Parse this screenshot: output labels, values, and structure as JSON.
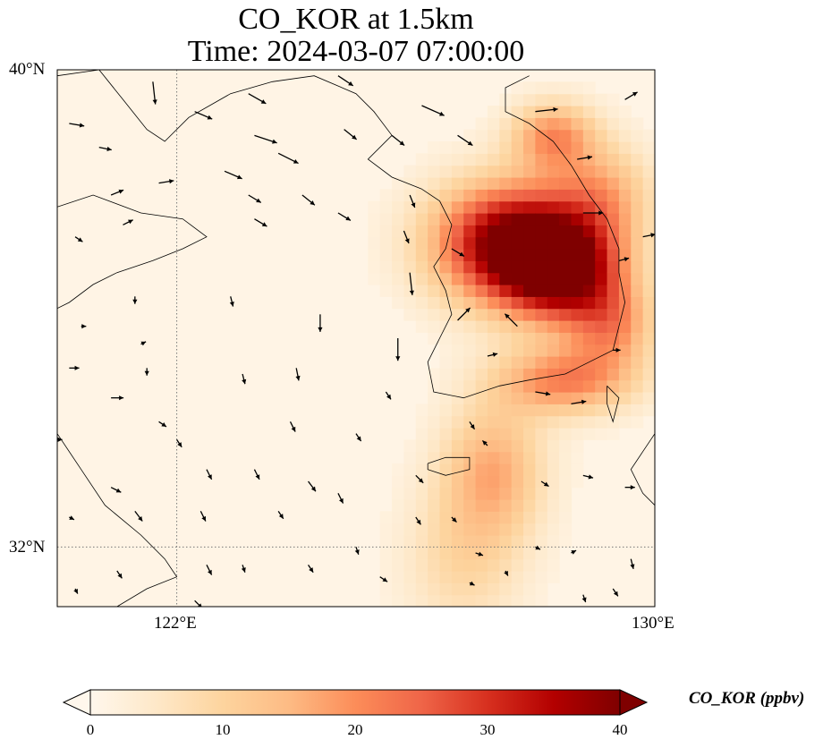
{
  "title": {
    "line1": "CO_KOR at 1.5km",
    "line2": "Time: 2024-03-07 07:00:00"
  },
  "axes": {
    "lat_ticks": [
      "40°N",
      "32°N"
    ],
    "lon_ticks": [
      "122°E",
      "130°E"
    ],
    "extent": {
      "lon_min": 120,
      "lon_max": 130,
      "lat_min": 31,
      "lat_max": 40
    },
    "gridlines": {
      "lons": [
        122
      ],
      "lats": [
        32
      ],
      "style": "dotted"
    }
  },
  "colorbar": {
    "label": "CO_KOR (ppbv)",
    "ticks": [
      "0",
      "10",
      "20",
      "30",
      "40"
    ],
    "min": 0,
    "max": 40,
    "extend": "both",
    "cmap": "OrRd",
    "colors": [
      "#fff7ec",
      "#fee8c8",
      "#fdd49e",
      "#fdbb84",
      "#fc8d59",
      "#ef6548",
      "#d7301f",
      "#b30000",
      "#7f0000"
    ]
  },
  "field": {
    "background_value": 1,
    "plumes": [
      {
        "name": "core",
        "lon": 127.6,
        "lat": 37.1,
        "peak": 40,
        "sigma_lon": 0.9,
        "sigma_lat": 0.7
      },
      {
        "name": "core-east",
        "lon": 128.5,
        "lat": 36.6,
        "peak": 32,
        "sigma_lon": 0.7,
        "sigma_lat": 0.6
      },
      {
        "name": "north",
        "lon": 128.3,
        "lat": 38.9,
        "peak": 18,
        "sigma_lon": 0.5,
        "sigma_lat": 0.4
      },
      {
        "name": "northeast",
        "lon": 129.1,
        "lat": 37.9,
        "peak": 14,
        "sigma_lon": 0.6,
        "sigma_lat": 0.6
      },
      {
        "name": "south",
        "lon": 128.5,
        "lat": 34.8,
        "peak": 20,
        "sigma_lon": 0.8,
        "sigma_lat": 0.4
      },
      {
        "name": "southeast",
        "lon": 129.3,
        "lat": 35.7,
        "peak": 16,
        "sigma_lon": 0.5,
        "sigma_lat": 0.5
      },
      {
        "name": "jeju",
        "lon": 127.3,
        "lat": 33.3,
        "peak": 15,
        "sigma_lon": 0.6,
        "sigma_lat": 0.8
      },
      {
        "name": "tail",
        "lon": 126.8,
        "lat": 31.8,
        "peak": 8,
        "sigma_lon": 0.7,
        "sigma_lat": 0.9
      }
    ]
  },
  "wind_vectors": [
    {
      "lon": 120.2,
      "lat": 39.1,
      "u": 0.6,
      "v": -0.1
    },
    {
      "lon": 120.7,
      "lat": 38.7,
      "u": 0.5,
      "v": -0.1
    },
    {
      "lon": 121.6,
      "lat": 39.8,
      "u": 0.1,
      "v": -0.9
    },
    {
      "lon": 122.3,
      "lat": 39.3,
      "u": 0.7,
      "v": -0.3
    },
    {
      "lon": 123.2,
      "lat": 39.6,
      "u": 0.7,
      "v": -0.4
    },
    {
      "lon": 124.7,
      "lat": 39.9,
      "u": 0.6,
      "v": -0.4
    },
    {
      "lon": 126.1,
      "lat": 39.4,
      "u": 0.9,
      "v": -0.4
    },
    {
      "lon": 128.0,
      "lat": 39.3,
      "u": 0.9,
      "v": 0.1
    },
    {
      "lon": 129.5,
      "lat": 39.5,
      "u": 0.5,
      "v": 0.3
    },
    {
      "lon": 123.3,
      "lat": 38.9,
      "u": 0.9,
      "v": -0.3
    },
    {
      "lon": 123.7,
      "lat": 38.6,
      "u": 0.8,
      "v": -0.4
    },
    {
      "lon": 124.8,
      "lat": 39.0,
      "u": 0.5,
      "v": -0.4
    },
    {
      "lon": 125.6,
      "lat": 38.9,
      "u": 0.5,
      "v": -0.4
    },
    {
      "lon": 126.7,
      "lat": 38.9,
      "u": 0.6,
      "v": -0.4
    },
    {
      "lon": 128.7,
      "lat": 38.5,
      "u": 0.6,
      "v": 0.1
    },
    {
      "lon": 122.8,
      "lat": 38.3,
      "u": 0.7,
      "v": -0.3
    },
    {
      "lon": 121.7,
      "lat": 38.1,
      "u": 0.6,
      "v": 0.1
    },
    {
      "lon": 120.9,
      "lat": 37.9,
      "u": 0.5,
      "v": 0.2
    },
    {
      "lon": 123.2,
      "lat": 37.9,
      "u": 0.5,
      "v": -0.3
    },
    {
      "lon": 124.1,
      "lat": 37.9,
      "u": 0.5,
      "v": -0.4
    },
    {
      "lon": 125.9,
      "lat": 37.9,
      "u": 0.2,
      "v": -0.5
    },
    {
      "lon": 124.7,
      "lat": 37.6,
      "u": 0.5,
      "v": -0.3
    },
    {
      "lon": 120.3,
      "lat": 37.2,
      "u": 0.3,
      "v": -0.2
    },
    {
      "lon": 121.1,
      "lat": 37.4,
      "u": 0.4,
      "v": 0.2
    },
    {
      "lon": 123.3,
      "lat": 37.5,
      "u": 0.5,
      "v": -0.3
    },
    {
      "lon": 125.8,
      "lat": 37.3,
      "u": 0.2,
      "v": -0.5
    },
    {
      "lon": 128.8,
      "lat": 37.6,
      "u": 0.8,
      "v": 0.0
    },
    {
      "lon": 129.8,
      "lat": 37.2,
      "u": 0.5,
      "v": 0.1
    },
    {
      "lon": 126.6,
      "lat": 37.0,
      "u": 0.5,
      "v": -0.3
    },
    {
      "lon": 129.4,
      "lat": 36.8,
      "u": 0.4,
      "v": 0.1
    },
    {
      "lon": 125.9,
      "lat": 36.6,
      "u": 0.1,
      "v": -0.9
    },
    {
      "lon": 121.3,
      "lat": 36.2,
      "u": 0.0,
      "v": -0.3
    },
    {
      "lon": 122.9,
      "lat": 36.2,
      "u": 0.1,
      "v": -0.4
    },
    {
      "lon": 124.4,
      "lat": 35.9,
      "u": 0.0,
      "v": -0.7
    },
    {
      "lon": 126.7,
      "lat": 35.8,
      "u": 0.5,
      "v": 0.5
    },
    {
      "lon": 127.7,
      "lat": 35.7,
      "u": -0.5,
      "v": 0.5
    },
    {
      "lon": 120.4,
      "lat": 35.7,
      "u": 0.2,
      "v": 0.0
    },
    {
      "lon": 121.4,
      "lat": 35.4,
      "u": 0.2,
      "v": 0.1
    },
    {
      "lon": 125.7,
      "lat": 35.5,
      "u": 0.0,
      "v": -0.9
    },
    {
      "lon": 127.2,
      "lat": 35.2,
      "u": 0.4,
      "v": 0.1
    },
    {
      "lon": 129.3,
      "lat": 35.3,
      "u": 0.3,
      "v": 0.0
    },
    {
      "lon": 130.0,
      "lat": 35.4,
      "u": 0.3,
      "v": 0.0
    },
    {
      "lon": 120.2,
      "lat": 35.0,
      "u": 0.4,
      "v": 0.0
    },
    {
      "lon": 121.5,
      "lat": 35.0,
      "u": 0.0,
      "v": -0.3
    },
    {
      "lon": 123.1,
      "lat": 34.9,
      "u": 0.1,
      "v": -0.4
    },
    {
      "lon": 124.0,
      "lat": 35.0,
      "u": 0.1,
      "v": -0.5
    },
    {
      "lon": 123.9,
      "lat": 34.1,
      "u": 0.2,
      "v": -0.4
    },
    {
      "lon": 125.5,
      "lat": 34.6,
      "u": 0.2,
      "v": -0.3
    },
    {
      "lon": 120.9,
      "lat": 34.5,
      "u": 0.5,
      "v": 0.0
    },
    {
      "lon": 121.7,
      "lat": 34.1,
      "u": 0.3,
      "v": -0.2
    },
    {
      "lon": 125.0,
      "lat": 33.9,
      "u": 0.2,
      "v": -0.3
    },
    {
      "lon": 126.9,
      "lat": 34.1,
      "u": 0.2,
      "v": -0.3
    },
    {
      "lon": 128.0,
      "lat": 34.6,
      "u": 0.6,
      "v": -0.1
    },
    {
      "lon": 128.6,
      "lat": 34.4,
      "u": 0.6,
      "v": 0.1
    },
    {
      "lon": 127.2,
      "lat": 33.7,
      "u": -0.2,
      "v": 0.2
    },
    {
      "lon": 126.0,
      "lat": 33.2,
      "u": 0.3,
      "v": -0.3
    },
    {
      "lon": 120.0,
      "lat": 33.8,
      "u": 0.2,
      "v": 0.0
    },
    {
      "lon": 122.0,
      "lat": 33.8,
      "u": 0.2,
      "v": -0.3
    },
    {
      "lon": 122.5,
      "lat": 33.3,
      "u": 0.2,
      "v": -0.4
    },
    {
      "lon": 123.3,
      "lat": 33.3,
      "u": 0.2,
      "v": -0.4
    },
    {
      "lon": 124.2,
      "lat": 33.1,
      "u": 0.3,
      "v": -0.4
    },
    {
      "lon": 124.7,
      "lat": 32.9,
      "u": 0.2,
      "v": -0.4
    },
    {
      "lon": 120.9,
      "lat": 33.0,
      "u": 0.4,
      "v": -0.2
    },
    {
      "lon": 121.3,
      "lat": 32.6,
      "u": 0.3,
      "v": -0.4
    },
    {
      "lon": 122.4,
      "lat": 32.6,
      "u": 0.2,
      "v": -0.4
    },
    {
      "lon": 123.7,
      "lat": 32.6,
      "u": 0.2,
      "v": -0.3
    },
    {
      "lon": 126.0,
      "lat": 32.5,
      "u": 0.2,
      "v": -0.3
    },
    {
      "lon": 126.6,
      "lat": 32.5,
      "u": 0.2,
      "v": -0.2
    },
    {
      "lon": 128.8,
      "lat": 33.2,
      "u": 0.4,
      "v": -0.1
    },
    {
      "lon": 129.5,
      "lat": 33.0,
      "u": 0.4,
      "v": 0.0
    },
    {
      "lon": 128.1,
      "lat": 33.1,
      "u": 0.3,
      "v": -0.2
    },
    {
      "lon": 120.2,
      "lat": 32.5,
      "u": 0.2,
      "v": -0.1
    },
    {
      "lon": 125.0,
      "lat": 32.0,
      "u": 0.1,
      "v": -0.3
    },
    {
      "lon": 127.0,
      "lat": 31.9,
      "u": 0.3,
      "v": -0.1
    },
    {
      "lon": 128.0,
      "lat": 32.0,
      "u": 0.2,
      "v": -0.1
    },
    {
      "lon": 128.6,
      "lat": 31.9,
      "u": 0.2,
      "v": 0.1
    },
    {
      "lon": 129.6,
      "lat": 31.8,
      "u": 0.1,
      "v": -0.4
    },
    {
      "lon": 125.4,
      "lat": 31.5,
      "u": 0.3,
      "v": -0.2
    },
    {
      "lon": 127.5,
      "lat": 31.6,
      "u": 0.1,
      "v": -0.2
    },
    {
      "lon": 121.0,
      "lat": 31.6,
      "u": 0.2,
      "v": -0.3
    },
    {
      "lon": 122.5,
      "lat": 31.7,
      "u": 0.2,
      "v": -0.4
    },
    {
      "lon": 123.1,
      "lat": 31.7,
      "u": 0.1,
      "v": -0.3
    },
    {
      "lon": 124.2,
      "lat": 31.7,
      "u": 0.2,
      "v": -0.3
    },
    {
      "lon": 120.3,
      "lat": 31.3,
      "u": 0.1,
      "v": -0.2
    },
    {
      "lon": 122.3,
      "lat": 31.1,
      "u": 0.3,
      "v": -0.3
    },
    {
      "lon": 126.9,
      "lat": 31.4,
      "u": 0.2,
      "v": -0.1
    },
    {
      "lon": 128.8,
      "lat": 31.2,
      "u": 0.1,
      "v": -0.3
    },
    {
      "lon": 129.3,
      "lat": 31.3,
      "u": 0.2,
      "v": -0.3
    }
  ],
  "coastlines": {
    "korea": [
      [
        126.1,
        38.0
      ],
      [
        126.4,
        37.8
      ],
      [
        126.6,
        37.4
      ],
      [
        126.5,
        37.0
      ],
      [
        126.3,
        36.7
      ],
      [
        126.5,
        36.3
      ],
      [
        126.6,
        35.9
      ],
      [
        126.4,
        35.5
      ],
      [
        126.2,
        35.1
      ],
      [
        126.3,
        34.6
      ],
      [
        126.8,
        34.5
      ],
      [
        127.4,
        34.7
      ],
      [
        127.9,
        34.8
      ],
      [
        128.5,
        34.9
      ],
      [
        128.9,
        35.1
      ],
      [
        129.3,
        35.3
      ],
      [
        129.4,
        35.7
      ],
      [
        129.5,
        36.1
      ],
      [
        129.4,
        36.6
      ],
      [
        129.4,
        37.0
      ],
      [
        129.2,
        37.5
      ],
      [
        128.9,
        37.9
      ],
      [
        128.6,
        38.4
      ],
      [
        128.3,
        38.8
      ],
      [
        127.9,
        39.1
      ],
      [
        127.5,
        39.3
      ],
      [
        127.5,
        39.7
      ],
      [
        127.9,
        39.9
      ]
    ],
    "china_north": [
      [
        120.0,
        37.7
      ],
      [
        120.6,
        37.9
      ],
      [
        121.4,
        37.6
      ],
      [
        122.1,
        37.5
      ],
      [
        122.5,
        37.2
      ],
      [
        122.1,
        37.0
      ],
      [
        121.6,
        36.8
      ],
      [
        121.0,
        36.6
      ],
      [
        120.6,
        36.4
      ],
      [
        120.2,
        36.1
      ],
      [
        120.0,
        36.0
      ]
    ],
    "liaodong": [
      [
        120.0,
        39.9
      ],
      [
        120.7,
        40.0
      ],
      [
        121.1,
        39.5
      ],
      [
        121.5,
        39.0
      ],
      [
        121.8,
        38.8
      ],
      [
        122.2,
        39.2
      ],
      [
        122.9,
        39.6
      ],
      [
        123.6,
        39.8
      ],
      [
        124.3,
        39.9
      ],
      [
        125.0,
        39.6
      ],
      [
        125.3,
        39.3
      ],
      [
        125.6,
        38.9
      ],
      [
        125.2,
        38.5
      ],
      [
        125.6,
        38.2
      ],
      [
        126.1,
        38.0
      ]
    ],
    "china_south": [
      [
        120.0,
        33.9
      ],
      [
        120.4,
        33.3
      ],
      [
        120.8,
        32.7
      ],
      [
        121.4,
        32.2
      ],
      [
        121.8,
        31.8
      ],
      [
        122.0,
        31.5
      ],
      [
        121.5,
        31.3
      ],
      [
        121.0,
        31.0
      ]
    ],
    "jeju": [
      [
        126.2,
        33.4
      ],
      [
        126.5,
        33.5
      ],
      [
        126.9,
        33.5
      ],
      [
        126.9,
        33.3
      ],
      [
        126.5,
        33.2
      ],
      [
        126.2,
        33.3
      ],
      [
        126.2,
        33.4
      ]
    ],
    "japan_tsushima": [
      [
        129.2,
        34.7
      ],
      [
        129.4,
        34.5
      ],
      [
        129.3,
        34.1
      ],
      [
        129.2,
        34.4
      ],
      [
        129.2,
        34.7
      ]
    ],
    "japan_kyushu": [
      [
        130.0,
        33.9
      ],
      [
        129.8,
        33.6
      ],
      [
        129.6,
        33.3
      ],
      [
        129.8,
        32.9
      ],
      [
        130.0,
        32.7
      ]
    ]
  }
}
